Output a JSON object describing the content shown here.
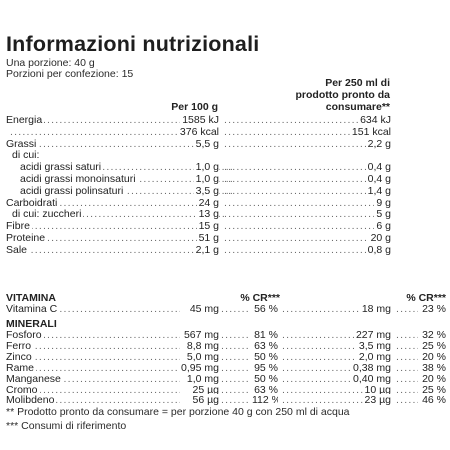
{
  "title": "Informazioni nutrizionali",
  "portion": "Una porzione: 40 g",
  "portions_per_pack": "Porzioni per confezione: 15",
  "header": {
    "col1": "Per 100 g",
    "col2_line1": "Per 250 ml di",
    "col2_line2": "prodotto pronto da",
    "col2_line3": "consumare**"
  },
  "nutrients": [
    {
      "label": "Energia",
      "v1": "1585 kJ",
      "v2": "634 kJ"
    },
    {
      "label": "",
      "v1": "376 kcal",
      "v2": "151 kcal"
    },
    {
      "label": "Grassi",
      "v1": "5,5 g",
      "v2": "2,2 g"
    },
    {
      "label": "di cui:",
      "v1": "",
      "v2": ""
    },
    {
      "label": "acidi grassi saturi",
      "v1": "1,0 g",
      "v2": "0,4 g"
    },
    {
      "label": "acidi grassi monoinsaturi",
      "v1": "1,0 g",
      "v2": "0,4 g"
    },
    {
      "label": "acidi grassi polinsaturi",
      "v1": "3,5 g",
      "v2": "1,4 g"
    },
    {
      "label": "Carboidrati",
      "v1": "24 g",
      "v2": "9 g"
    },
    {
      "label": "di cui: zuccheri",
      "v1": "13 g",
      "v2": "5 g"
    },
    {
      "label": "Fibre",
      "v1": "15 g",
      "v2": "6 g"
    },
    {
      "label": "Proteine",
      "v1": "51 g",
      "v2": "20 g"
    },
    {
      "label": "Sale",
      "v1": "2,1 g",
      "v2": "0,8 g"
    }
  ],
  "vitamin_section": {
    "title": "VITAMINA",
    "cr1": "% CR***",
    "cr2": "% CR***"
  },
  "vitamins": [
    {
      "label": "Vitamina C",
      "v1": "45 mg",
      "p1": "56 %",
      "v2": "18 mg",
      "p2": "23 %"
    }
  ],
  "minerals_section": {
    "title": "MINERALI"
  },
  "minerals": [
    {
      "label": "Fosforo",
      "v1": "567 mg",
      "p1": "81 %",
      "v2": "227 mg",
      "p2": "32 %"
    },
    {
      "label": "Ferro",
      "v1": "8,8 mg",
      "p1": "63 %",
      "v2": "3,5 mg",
      "p2": "25 %"
    },
    {
      "label": "Zinco",
      "v1": "5,0 mg",
      "p1": "50 %",
      "v2": "2,0 mg",
      "p2": "20 %"
    },
    {
      "label": "Rame",
      "v1": "0,95 mg",
      "p1": "95 %",
      "v2": "0,38 mg",
      "p2": "38 %"
    },
    {
      "label": "Manganese",
      "v1": "1,0 mg",
      "p1": "50 %",
      "v2": "0,40 mg",
      "p2": "20 %"
    },
    {
      "label": "Cromo",
      "v1": "25 µg",
      "p1": "63 %",
      "v2": "10 µg",
      "p2": "25 %"
    },
    {
      "label": "Molibdeno",
      "v1": "56 µg",
      "p1": "112 %",
      "v2": "23 µg",
      "p2": "46 %"
    }
  ],
  "footnote1": "** Prodotto pronto da consumare = per porzione 40 g con 250 ml di acqua",
  "footnote2": "*** Consumi di riferimento"
}
